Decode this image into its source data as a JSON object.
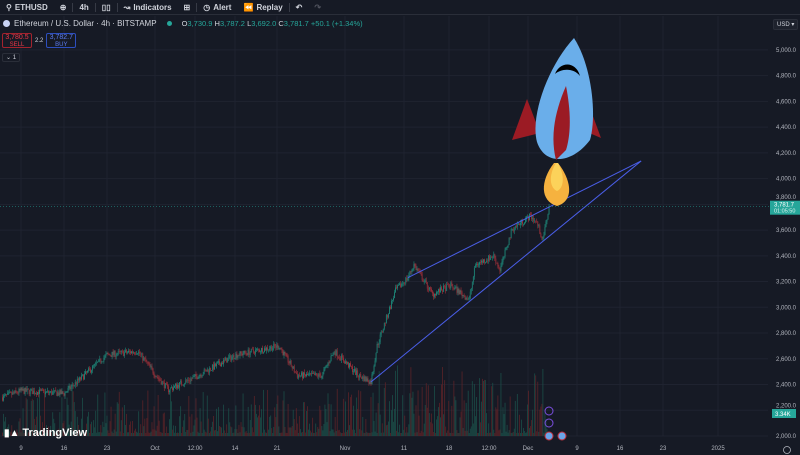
{
  "toolbar": {
    "symbol": "ETHUSD",
    "interval": "4h",
    "indicators": "Indicators",
    "alert": "Alert",
    "replay": "Replay"
  },
  "legend": {
    "title": "Ethereum / U.S. Dollar · 4h · BITSTAMP",
    "o_label": "O",
    "o": "3,730.9",
    "h_label": "H",
    "h": "3,787.2",
    "l_label": "L",
    "l": "3,692.0",
    "c_label": "C",
    "c": "3,781.7",
    "change": "+50.1 (+1.34%)"
  },
  "trade": {
    "sell_price": "3,780.5",
    "sell_label": "SELL",
    "spread": "2.2",
    "buy_price": "3,782.7",
    "buy_label": "BUY",
    "collapse": "1"
  },
  "currency": "USD",
  "branding": "TradingView",
  "colors": {
    "up": "#26a69a",
    "down": "#ef5350",
    "trendline": "#4a5ee8",
    "background": "#161a25",
    "last_price": "#26a69a"
  },
  "chart_data": {
    "type": "candlestick",
    "symbol": "ETHUSD",
    "interval": "4h",
    "y_ticks": [
      "5,000.0",
      "4,800.0",
      "4,600.0",
      "4,400.0",
      "4,200.0",
      "4,000.0",
      "3,800.0",
      "3,600.0",
      "3,400.0",
      "3,200.0",
      "3,000.0",
      "2,800.0",
      "2,600.0",
      "2,400.0",
      "2,200.0",
      "2,000.0"
    ],
    "ylim": [
      2000,
      5000
    ],
    "x_ticks": [
      "9",
      "16",
      "23",
      "Oct",
      "12:00",
      "14",
      "21",
      "Nov",
      "11",
      "18",
      "12:00",
      "Dec",
      "9",
      "16",
      "23",
      "2025"
    ],
    "approx_close": [
      [
        "2024-09-06",
        2300
      ],
      [
        "2024-09-09",
        2350
      ],
      [
        "2024-09-16",
        2330
      ],
      [
        "2024-09-23",
        2630
      ],
      [
        "2024-09-28",
        2660
      ],
      [
        "2024-10-01",
        2470
      ],
      [
        "2024-10-03",
        2360
      ],
      [
        "2024-10-07",
        2450
      ],
      [
        "2024-10-14",
        2630
      ],
      [
        "2024-10-21",
        2700
      ],
      [
        "2024-10-24",
        2470
      ],
      [
        "2024-10-28",
        2470
      ],
      [
        "2024-10-30",
        2660
      ],
      [
        "2024-11-03",
        2470
      ],
      [
        "2024-11-05",
        2420
      ],
      [
        "2024-11-06",
        2700
      ],
      [
        "2024-11-09",
        3130
      ],
      [
        "2024-11-11",
        3230
      ],
      [
        "2024-11-12",
        3330
      ],
      [
        "2024-11-15",
        3100
      ],
      [
        "2024-11-18",
        3170
      ],
      [
        "2024-11-21",
        3060
      ],
      [
        "2024-11-22",
        3330
      ],
      [
        "2024-11-25",
        3400
      ],
      [
        "2024-11-26",
        3290
      ],
      [
        "2024-11-28",
        3610
      ],
      [
        "2024-12-01",
        3710
      ],
      [
        "2024-12-02",
        3660
      ],
      [
        "2024-12-03",
        3520
      ],
      [
        "2024-12-04",
        3781.7
      ]
    ],
    "last_price": "3,781.7",
    "countdown": "01:05:50",
    "volume_last": "3.34K",
    "trendlines": [
      {
        "from": [
          "2024-11-11",
          3230
        ],
        "to": [
          "2024-12-19",
          4137
        ]
      },
      {
        "from": [
          "2024-11-05",
          2420
        ],
        "to": [
          "2024-12-19",
          4137
        ]
      }
    ]
  }
}
